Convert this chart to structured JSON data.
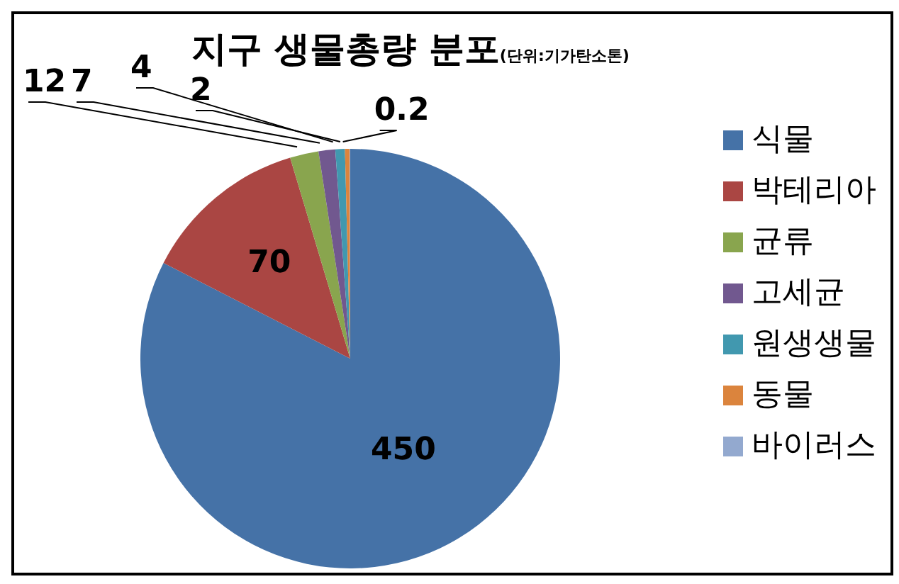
{
  "chart_data": {
    "type": "pie",
    "title": "지구 생물총량 분포",
    "subtitle": "(단위:기가탄소톤)",
    "categories": [
      "식물",
      "박테리아",
      "균류",
      "고세균",
      "원생생물",
      "동물",
      "바이러스"
    ],
    "values": [
      450,
      70,
      12,
      7,
      4,
      2,
      0.2
    ],
    "colors": [
      "#4572a7",
      "#aa4643",
      "#89a54e",
      "#71588f",
      "#4198af",
      "#db843d",
      "#93a9cf"
    ],
    "data_labels": true,
    "legend": "right"
  }
}
